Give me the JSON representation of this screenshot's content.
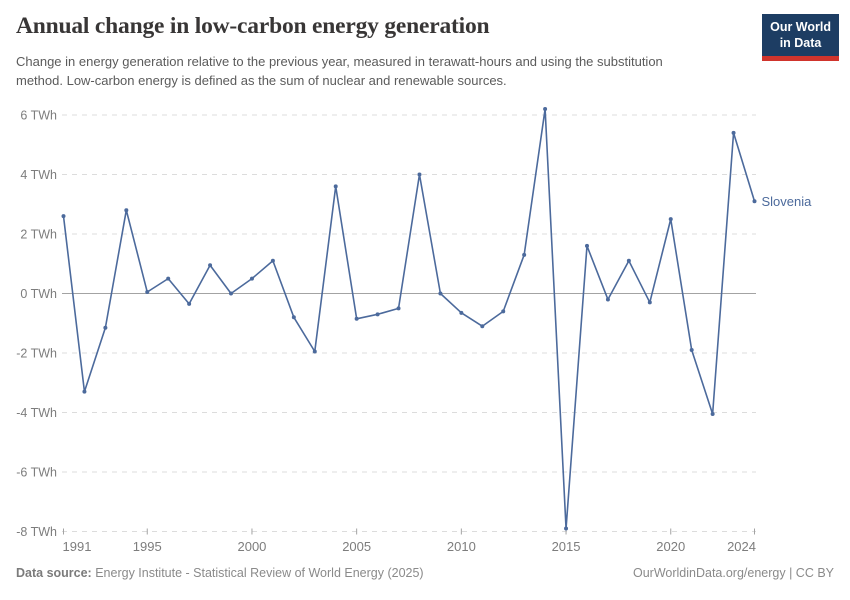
{
  "header": {
    "title": "Annual change in low-carbon energy generation",
    "subtitle": "Change in energy generation relative to the previous year, measured in terawatt-hours and using the substitution method. Low-carbon energy is defined as the sum of nuclear and renewable sources.",
    "logo": {
      "line1": "Our World",
      "line2": "in Data",
      "bg_color": "#1d3d63",
      "bar_color": "#d0342c"
    }
  },
  "chart_data": {
    "type": "line",
    "title": "Annual change in low-carbon energy generation",
    "unit": "TWh",
    "xlabel": "",
    "ylabel": "",
    "xlim": [
      1991,
      2024
    ],
    "ylim": [
      -8,
      6.5
    ],
    "grid": "horizontal-dashed",
    "legend_position": "end-of-line-label",
    "x_ticks": [
      1991,
      1995,
      2000,
      2005,
      2010,
      2015,
      2020,
      2024
    ],
    "x_tick_labels": [
      "1991",
      "1995",
      "2000",
      "2005",
      "2010",
      "2015",
      "2020",
      "2024"
    ],
    "y_ticks": [
      6,
      4,
      2,
      0,
      -2,
      -4,
      -6,
      -8
    ],
    "y_tick_labels": [
      "6 TWh",
      "4 TWh",
      "2 TWh",
      "0 TWh",
      "-2 TWh",
      "-4 TWh",
      "-6 TWh",
      "-8 TWh"
    ],
    "series": [
      {
        "name": "Slovenia",
        "color": "#4c6a9c",
        "x": [
          1991,
          1992,
          1993,
          1994,
          1995,
          1996,
          1997,
          1998,
          1999,
          2000,
          2001,
          2002,
          2003,
          2004,
          2005,
          2006,
          2007,
          2008,
          2009,
          2010,
          2011,
          2012,
          2013,
          2014,
          2015,
          2016,
          2017,
          2018,
          2019,
          2020,
          2021,
          2022,
          2023,
          2024
        ],
        "values": [
          2.6,
          -3.3,
          -1.15,
          2.8,
          0.05,
          0.5,
          -0.35,
          0.95,
          0.0,
          0.5,
          1.1,
          -0.8,
          -1.95,
          3.6,
          -0.85,
          -0.7,
          -0.5,
          4.0,
          0.0,
          -0.65,
          -1.1,
          -0.6,
          1.3,
          6.2,
          -7.9,
          1.6,
          -0.2,
          1.1,
          -0.3,
          2.5,
          -1.9,
          -4.05,
          5.4,
          3.1
        ]
      }
    ]
  },
  "footer": {
    "source_label": "Data source:",
    "source_text": " Energy Institute - Statistical Review of World Energy (2025)",
    "credit": "OurWorldinData.org/energy | CC BY"
  },
  "colors": {
    "line": "#4c6a9c",
    "grid": "#dcdcdc",
    "zero_line": "#a3a3a3",
    "axis_text": "#7d7d7d",
    "title_text": "#383636",
    "subtitle_text": "#5b5b5b",
    "footer_text": "#8a8a8a",
    "logo_bg": "#1d3d63",
    "logo_bar": "#d0342c"
  }
}
